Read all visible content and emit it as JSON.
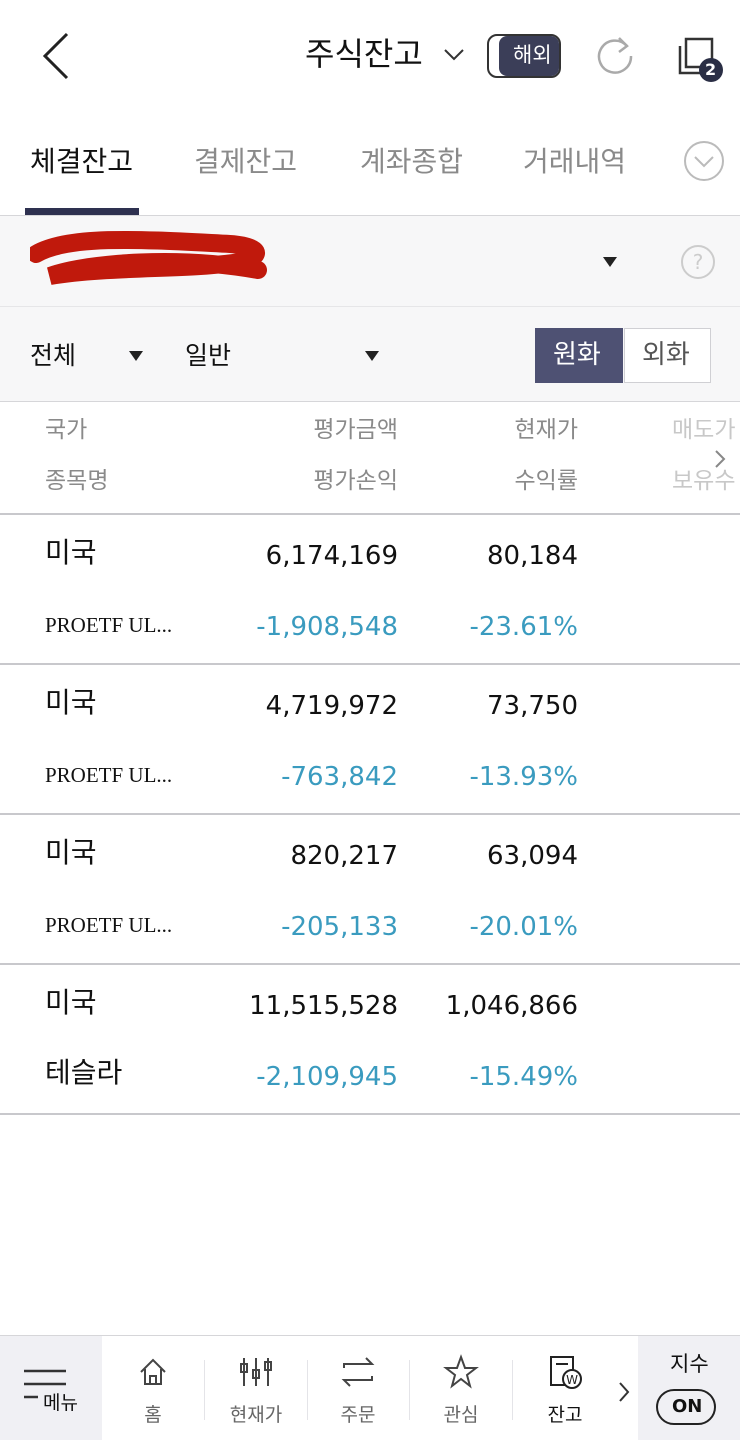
{
  "header": {
    "title": "주식잔고",
    "toggle": "해외",
    "badge": "2"
  },
  "tabs": [
    "체결잔고",
    "결제잔고",
    "계좌종합",
    "거래내역"
  ],
  "filters": {
    "market": "전체",
    "kind": "일반",
    "currency": [
      "원화",
      "외화"
    ]
  },
  "table": {
    "header": [
      [
        "국가",
        "평가금액",
        "현재가",
        "매도가"
      ],
      [
        "종목명",
        "평가손익",
        "수익률",
        "보유수"
      ]
    ],
    "rows": [
      {
        "country": "미국",
        "name": "PROETF UL...",
        "eval_amount": "6,174,169",
        "current_price": "80,184",
        "eval_pnl": "-1,908,548",
        "return_rate": "-23.61%"
      },
      {
        "country": "미국",
        "name": "PROETF UL...",
        "eval_amount": "4,719,972",
        "current_price": "73,750",
        "eval_pnl": "-763,842",
        "return_rate": "-13.93%"
      },
      {
        "country": "미국",
        "name": "PROETF UL...",
        "eval_amount": "820,217",
        "current_price": "63,094",
        "eval_pnl": "-205,133",
        "return_rate": "-20.01%"
      },
      {
        "country": "미국",
        "name": "테슬라",
        "eval_amount": "11,515,528",
        "current_price": "1,046,866",
        "eval_pnl": "-2,109,945",
        "return_rate": "-15.49%"
      }
    ]
  },
  "nav": {
    "menu": "메뉴",
    "items": [
      "홈",
      "현재가",
      "주문",
      "관심",
      "잔고"
    ],
    "index": "지수",
    "index_toggle": "ON"
  }
}
